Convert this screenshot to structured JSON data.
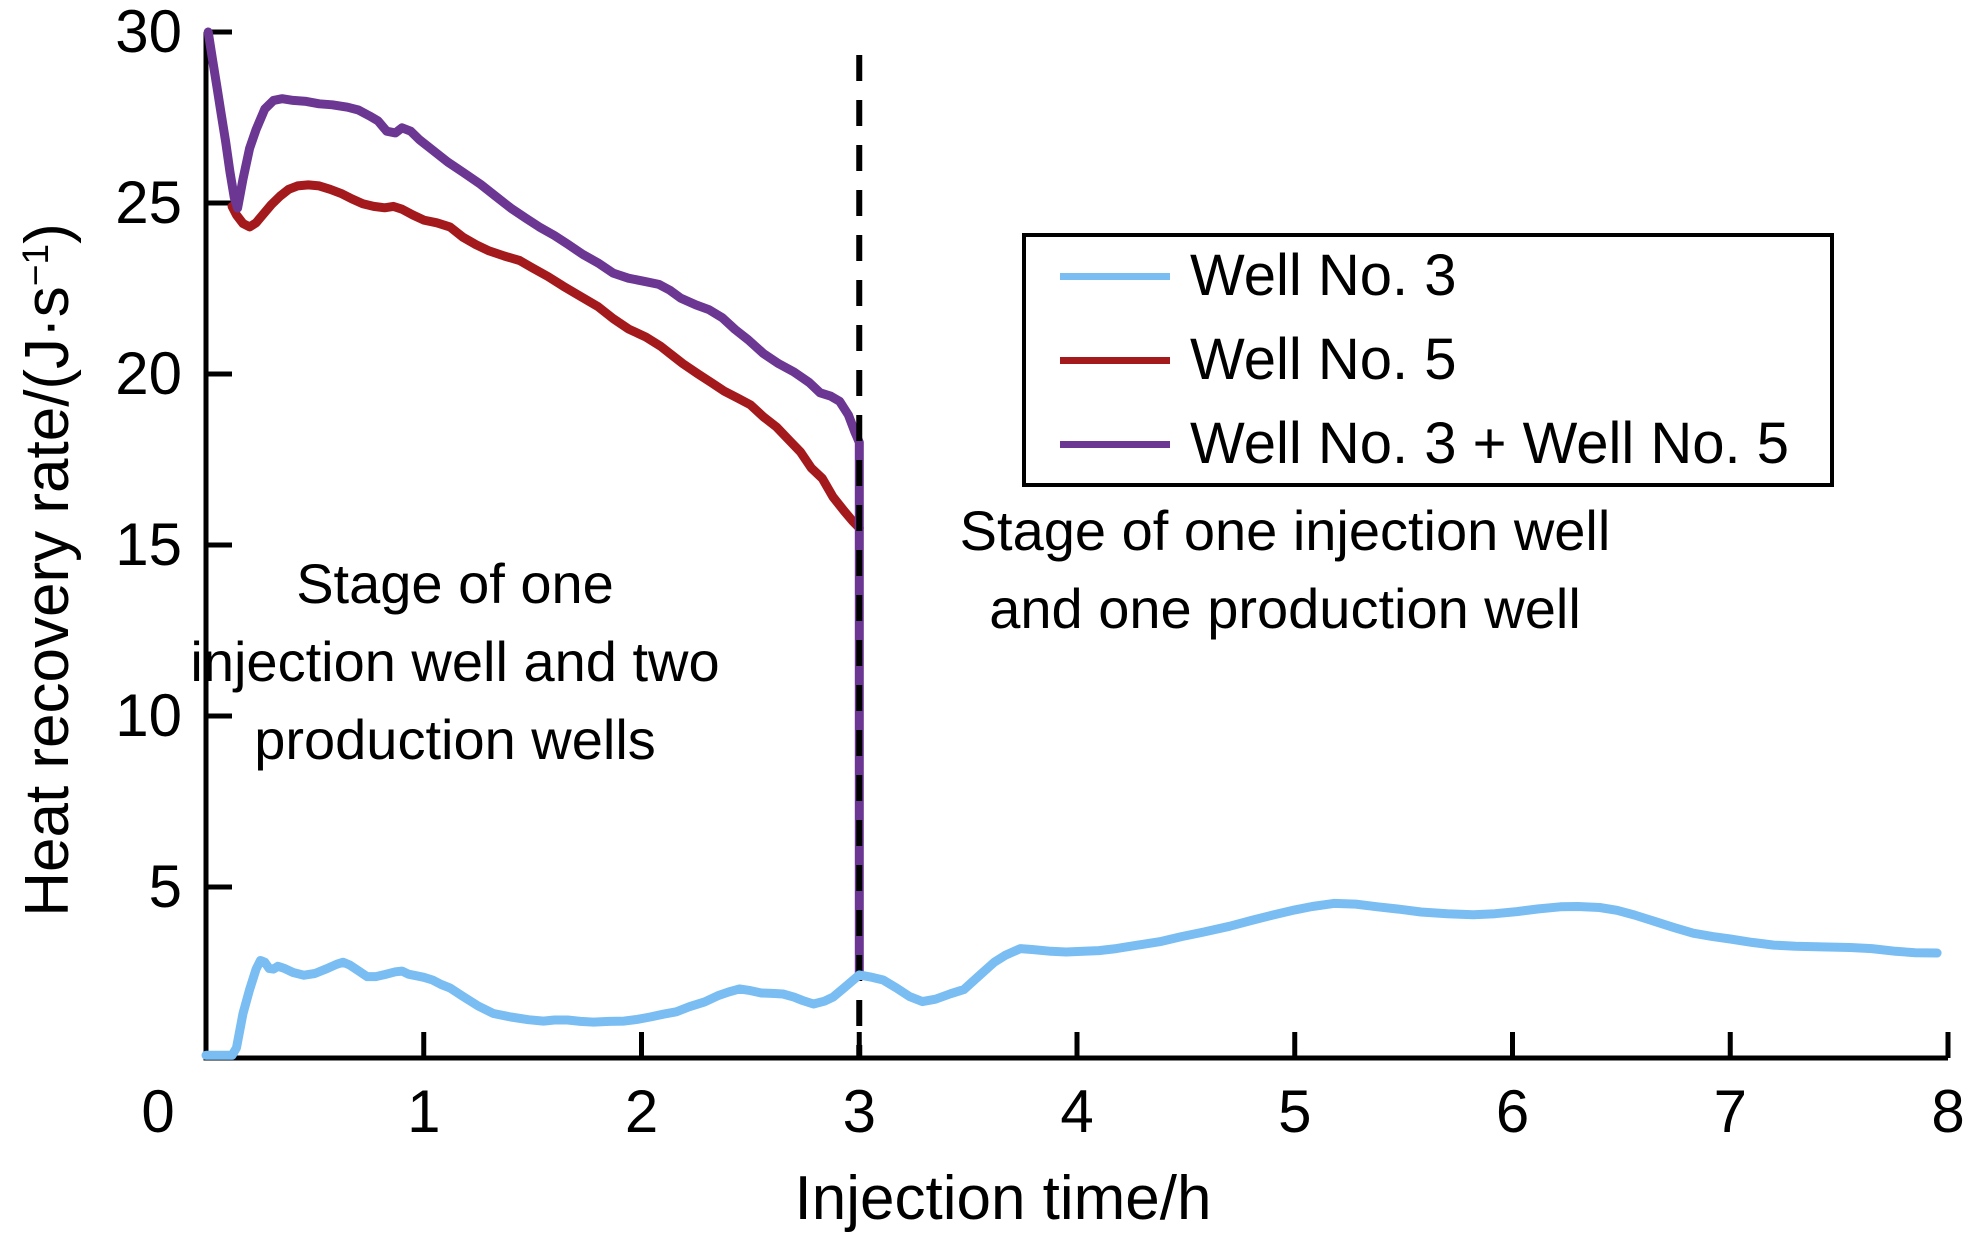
{
  "figure": {
    "y_axis": {
      "label_main": "Heat recovery rate/(J·s",
      "label_sup": "−1",
      "label_close": ")"
    },
    "x_axis": {
      "label": "Injection time/h"
    },
    "annotations": [
      {
        "lines": [
          "Stage of one",
          "injection well and two",
          "production wells"
        ]
      },
      {
        "lines": [
          "Stage of one injection well",
          "and one production well"
        ]
      }
    ]
  },
  "chart_data": {
    "type": "line",
    "title": "",
    "xlabel": "Injection time/h",
    "ylabel": "Heat recovery rate/(J·s−1)",
    "xlim": [
      0,
      8
    ],
    "ylim": [
      0,
      30
    ],
    "x_ticks": [
      0,
      1,
      2,
      3,
      4,
      5,
      6,
      7,
      8
    ],
    "y_ticks": [
      5,
      10,
      15,
      20,
      25,
      30
    ],
    "grid": false,
    "legend_position": "upper-right-inside",
    "stage_divider_x": 3,
    "axis_color": "#000000",
    "background_color": "#ffffff",
    "series": [
      {
        "id": "well-3",
        "name": "Well No. 3",
        "color": "#79BDF2",
        "points": [
          [
            0,
            0.08
          ],
          [
            0.12,
            0.08
          ],
          [
            0.14,
            0.3
          ],
          [
            0.17,
            1.3
          ],
          [
            0.2,
            2.0
          ],
          [
            0.23,
            2.6
          ],
          [
            0.25,
            2.85
          ],
          [
            0.27,
            2.8
          ],
          [
            0.29,
            2.62
          ],
          [
            0.31,
            2.6
          ],
          [
            0.33,
            2.68
          ],
          [
            0.36,
            2.62
          ],
          [
            0.4,
            2.5
          ],
          [
            0.45,
            2.42
          ],
          [
            0.5,
            2.47
          ],
          [
            0.55,
            2.6
          ],
          [
            0.6,
            2.74
          ],
          [
            0.63,
            2.8
          ],
          [
            0.66,
            2.72
          ],
          [
            0.7,
            2.55
          ],
          [
            0.74,
            2.38
          ],
          [
            0.78,
            2.38
          ],
          [
            0.82,
            2.44
          ],
          [
            0.87,
            2.52
          ],
          [
            0.9,
            2.54
          ],
          [
            0.93,
            2.45
          ],
          [
            0.97,
            2.4
          ],
          [
            1.0,
            2.36
          ],
          [
            1.04,
            2.28
          ],
          [
            1.08,
            2.15
          ],
          [
            1.12,
            2.05
          ],
          [
            1.18,
            1.8
          ],
          [
            1.25,
            1.52
          ],
          [
            1.32,
            1.3
          ],
          [
            1.4,
            1.2
          ],
          [
            1.48,
            1.12
          ],
          [
            1.55,
            1.08
          ],
          [
            1.6,
            1.11
          ],
          [
            1.66,
            1.11
          ],
          [
            1.72,
            1.07
          ],
          [
            1.78,
            1.05
          ],
          [
            1.85,
            1.07
          ],
          [
            1.92,
            1.08
          ],
          [
            1.98,
            1.13
          ],
          [
            2.04,
            1.2
          ],
          [
            2.1,
            1.28
          ],
          [
            2.16,
            1.35
          ],
          [
            2.22,
            1.5
          ],
          [
            2.29,
            1.64
          ],
          [
            2.35,
            1.82
          ],
          [
            2.4,
            1.93
          ],
          [
            2.45,
            2.02
          ],
          [
            2.5,
            1.97
          ],
          [
            2.55,
            1.9
          ],
          [
            2.6,
            1.89
          ],
          [
            2.65,
            1.87
          ],
          [
            2.7,
            1.78
          ],
          [
            2.74,
            1.68
          ],
          [
            2.79,
            1.58
          ],
          [
            2.84,
            1.66
          ],
          [
            2.88,
            1.78
          ],
          [
            2.93,
            2.05
          ],
          [
            3.0,
            2.43
          ],
          [
            3.05,
            2.37
          ],
          [
            3.11,
            2.28
          ],
          [
            3.17,
            2.05
          ],
          [
            3.23,
            1.8
          ],
          [
            3.29,
            1.65
          ],
          [
            3.35,
            1.72
          ],
          [
            3.42,
            1.88
          ],
          [
            3.48,
            2.0
          ],
          [
            3.55,
            2.4
          ],
          [
            3.62,
            2.8
          ],
          [
            3.67,
            3.0
          ],
          [
            3.74,
            3.2
          ],
          [
            3.8,
            3.17
          ],
          [
            3.88,
            3.12
          ],
          [
            3.95,
            3.1
          ],
          [
            4.03,
            3.12
          ],
          [
            4.1,
            3.14
          ],
          [
            4.18,
            3.2
          ],
          [
            4.28,
            3.3
          ],
          [
            4.38,
            3.4
          ],
          [
            4.48,
            3.55
          ],
          [
            4.58,
            3.68
          ],
          [
            4.7,
            3.85
          ],
          [
            4.8,
            4.02
          ],
          [
            4.9,
            4.18
          ],
          [
            5.0,
            4.33
          ],
          [
            5.08,
            4.43
          ],
          [
            5.18,
            4.52
          ],
          [
            5.28,
            4.5
          ],
          [
            5.38,
            4.42
          ],
          [
            5.48,
            4.35
          ],
          [
            5.58,
            4.27
          ],
          [
            5.7,
            4.22
          ],
          [
            5.82,
            4.19
          ],
          [
            5.92,
            4.22
          ],
          [
            6.02,
            4.28
          ],
          [
            6.12,
            4.36
          ],
          [
            6.22,
            4.42
          ],
          [
            6.3,
            4.43
          ],
          [
            6.4,
            4.4
          ],
          [
            6.48,
            4.32
          ],
          [
            6.56,
            4.18
          ],
          [
            6.65,
            4.0
          ],
          [
            6.74,
            3.82
          ],
          [
            6.83,
            3.65
          ],
          [
            6.92,
            3.55
          ],
          [
            7.0,
            3.48
          ],
          [
            7.1,
            3.38
          ],
          [
            7.2,
            3.3
          ],
          [
            7.3,
            3.27
          ],
          [
            7.42,
            3.25
          ],
          [
            7.55,
            3.23
          ],
          [
            7.65,
            3.2
          ],
          [
            7.76,
            3.12
          ],
          [
            7.85,
            3.08
          ],
          [
            7.95,
            3.07
          ]
        ]
      },
      {
        "id": "well-5",
        "name": "Well No. 5",
        "color": "#A41A1C",
        "points": [
          [
            0.12,
            24.9
          ],
          [
            0.14,
            24.65
          ],
          [
            0.17,
            24.4
          ],
          [
            0.2,
            24.3
          ],
          [
            0.23,
            24.42
          ],
          [
            0.26,
            24.65
          ],
          [
            0.3,
            24.95
          ],
          [
            0.34,
            25.2
          ],
          [
            0.38,
            25.4
          ],
          [
            0.42,
            25.5
          ],
          [
            0.47,
            25.53
          ],
          [
            0.52,
            25.5
          ],
          [
            0.57,
            25.4
          ],
          [
            0.62,
            25.28
          ],
          [
            0.67,
            25.12
          ],
          [
            0.72,
            24.98
          ],
          [
            0.77,
            24.9
          ],
          [
            0.82,
            24.86
          ],
          [
            0.86,
            24.9
          ],
          [
            0.9,
            24.82
          ],
          [
            0.95,
            24.65
          ],
          [
            1.0,
            24.5
          ],
          [
            1.06,
            24.42
          ],
          [
            1.12,
            24.3
          ],
          [
            1.18,
            24.0
          ],
          [
            1.24,
            23.78
          ],
          [
            1.3,
            23.6
          ],
          [
            1.37,
            23.45
          ],
          [
            1.44,
            23.32
          ],
          [
            1.5,
            23.1
          ],
          [
            1.57,
            22.85
          ],
          [
            1.64,
            22.57
          ],
          [
            1.72,
            22.27
          ],
          [
            1.8,
            21.97
          ],
          [
            1.87,
            21.62
          ],
          [
            1.94,
            21.32
          ],
          [
            2.02,
            21.08
          ],
          [
            2.09,
            20.8
          ],
          [
            2.14,
            20.55
          ],
          [
            2.19,
            20.3
          ],
          [
            2.26,
            20.0
          ],
          [
            2.32,
            19.75
          ],
          [
            2.38,
            19.5
          ],
          [
            2.44,
            19.3
          ],
          [
            2.5,
            19.1
          ],
          [
            2.56,
            18.75
          ],
          [
            2.62,
            18.45
          ],
          [
            2.68,
            18.05
          ],
          [
            2.73,
            17.72
          ],
          [
            2.78,
            17.25
          ],
          [
            2.83,
            16.95
          ],
          [
            2.88,
            16.4
          ],
          [
            2.93,
            16.0
          ],
          [
            2.97,
            15.7
          ],
          [
            3.0,
            15.5
          ]
        ]
      },
      {
        "id": "well-3-plus-5",
        "name": "Well No. 3 + Well No. 5",
        "color": "#6B3793",
        "points": [
          [
            0.01,
            30.0
          ],
          [
            0.03,
            29.2
          ],
          [
            0.05,
            28.4
          ],
          [
            0.07,
            27.6
          ],
          [
            0.09,
            26.8
          ],
          [
            0.11,
            25.9
          ],
          [
            0.13,
            25.15
          ],
          [
            0.145,
            24.85
          ],
          [
            0.17,
            25.7
          ],
          [
            0.2,
            26.6
          ],
          [
            0.23,
            27.15
          ],
          [
            0.27,
            27.75
          ],
          [
            0.31,
            28.0
          ],
          [
            0.35,
            28.05
          ],
          [
            0.4,
            28.0
          ],
          [
            0.46,
            27.97
          ],
          [
            0.52,
            27.9
          ],
          [
            0.58,
            27.87
          ],
          [
            0.65,
            27.8
          ],
          [
            0.7,
            27.72
          ],
          [
            0.75,
            27.55
          ],
          [
            0.79,
            27.4
          ],
          [
            0.83,
            27.1
          ],
          [
            0.87,
            27.05
          ],
          [
            0.9,
            27.2
          ],
          [
            0.94,
            27.1
          ],
          [
            0.98,
            26.85
          ],
          [
            1.04,
            26.55
          ],
          [
            1.11,
            26.2
          ],
          [
            1.18,
            25.9
          ],
          [
            1.26,
            25.55
          ],
          [
            1.33,
            25.2
          ],
          [
            1.4,
            24.85
          ],
          [
            1.47,
            24.55
          ],
          [
            1.53,
            24.3
          ],
          [
            1.6,
            24.05
          ],
          [
            1.66,
            23.8
          ],
          [
            1.73,
            23.5
          ],
          [
            1.8,
            23.25
          ],
          [
            1.87,
            22.95
          ],
          [
            1.94,
            22.8
          ],
          [
            2.02,
            22.7
          ],
          [
            2.08,
            22.62
          ],
          [
            2.13,
            22.45
          ],
          [
            2.18,
            22.22
          ],
          [
            2.25,
            22.02
          ],
          [
            2.31,
            21.88
          ],
          [
            2.37,
            21.65
          ],
          [
            2.43,
            21.3
          ],
          [
            2.49,
            21.0
          ],
          [
            2.56,
            20.6
          ],
          [
            2.63,
            20.3
          ],
          [
            2.7,
            20.06
          ],
          [
            2.77,
            19.75
          ],
          [
            2.82,
            19.45
          ],
          [
            2.87,
            19.35
          ],
          [
            2.91,
            19.2
          ],
          [
            2.95,
            18.8
          ],
          [
            2.98,
            18.3
          ],
          [
            3.0,
            18.0
          ],
          [
            3.0,
            2.43
          ]
        ]
      }
    ]
  }
}
